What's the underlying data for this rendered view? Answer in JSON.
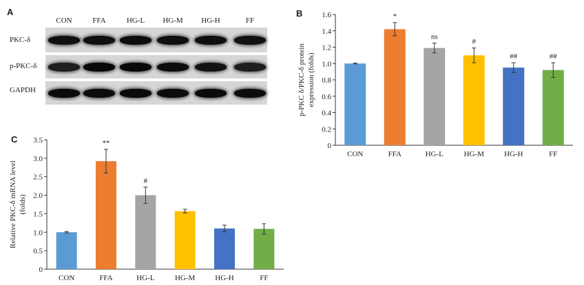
{
  "panels": {
    "a": "A",
    "b": "B",
    "c": "C"
  },
  "western_blot": {
    "lanes": [
      "CON",
      "FFA",
      "HG-L",
      "HG-M",
      "HG-H",
      "FF"
    ],
    "rows": [
      {
        "label": "PKC-δ",
        "intensity": [
          0.8,
          0.82,
          0.85,
          0.82,
          0.84,
          0.78
        ]
      },
      {
        "label": "p-PKC-δ",
        "intensity": [
          0.55,
          0.95,
          0.92,
          0.85,
          0.75,
          0.55
        ]
      },
      {
        "label": "GAPDH",
        "intensity": [
          0.9,
          0.88,
          0.9,
          0.88,
          0.9,
          0.86
        ]
      }
    ]
  },
  "chart_data": [
    {
      "type": "bar",
      "panel": "B",
      "categories": [
        "CON",
        "FFA",
        "HG-L",
        "HG-M",
        "HG-H",
        "FF"
      ],
      "values": [
        1.0,
        1.42,
        1.19,
        1.1,
        0.95,
        0.92
      ],
      "errors": [
        0.005,
        0.08,
        0.06,
        0.09,
        0.06,
        0.09
      ],
      "annotations": [
        "",
        "*",
        "ns",
        "#",
        "##",
        "##"
      ],
      "colors": [
        "#5B9BD5",
        "#ED7D31",
        "#A5A5A5",
        "#FFC000",
        "#4472C4",
        "#70AD47"
      ],
      "ylabel_line1": "p-PKC δ/PKC-δ  protein",
      "ylabel_line2": "expression (folds)",
      "ylim": [
        0,
        1.6
      ],
      "yticks": [
        "0",
        "0.2",
        "0.4",
        "0.6",
        "0.8",
        "1.0",
        "1.2",
        "1.4",
        "1.6"
      ],
      "ytick_values": [
        0,
        0.2,
        0.4,
        0.6,
        0.8,
        1.0,
        1.2,
        1.4,
        1.6
      ]
    },
    {
      "type": "bar",
      "panel": "C",
      "categories": [
        "CON",
        "FFA",
        "HG-L",
        "HG-M",
        "HG-H",
        "FF"
      ],
      "values": [
        1.0,
        2.92,
        2.0,
        1.57,
        1.1,
        1.09
      ],
      "errors": [
        0.02,
        0.32,
        0.22,
        0.05,
        0.09,
        0.14
      ],
      "annotations": [
        "",
        "**",
        "#",
        "",
        "",
        ""
      ],
      "colors": [
        "#5B9BD5",
        "#ED7D31",
        "#A5A5A5",
        "#FFC000",
        "#4472C4",
        "#70AD47"
      ],
      "ylabel_line1": "Relative PKC-δ mRNA level",
      "ylabel_line2": "(folds)",
      "ylim": [
        0,
        3.5
      ],
      "yticks": [
        "0",
        "0.5",
        "1.0",
        "1.5",
        "2.0",
        "2.5",
        "3.0",
        "3.5"
      ],
      "ytick_values": [
        0,
        0.5,
        1.0,
        1.5,
        2.0,
        2.5,
        3.0,
        3.5
      ]
    }
  ]
}
